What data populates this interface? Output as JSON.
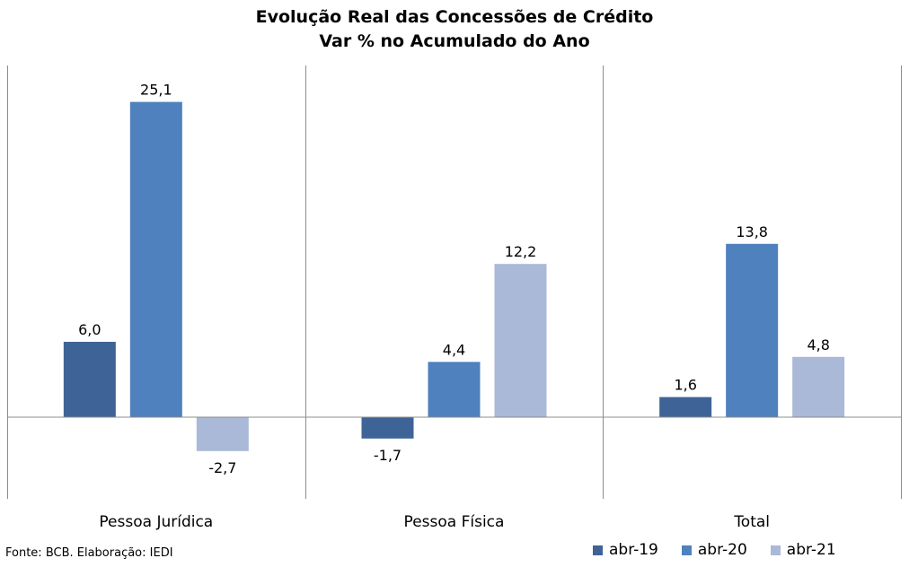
{
  "chart_data": {
    "type": "bar",
    "title": "Evolução Real das Concessões de Crédito",
    "subtitle": "Var % no Acumulado do Ano",
    "categories": [
      "Pessoa Jurídica",
      "Pessoa Física",
      "Total"
    ],
    "series": [
      {
        "name": "abr-19",
        "values": [
          6.0,
          -1.7,
          1.6
        ],
        "labels": [
          "6,0",
          "-1,7",
          "1,6"
        ],
        "color": "#3E6497"
      },
      {
        "name": "abr-20",
        "values": [
          25.1,
          4.4,
          13.8
        ],
        "labels": [
          "25,1",
          "4,4",
          "13,8"
        ],
        "color": "#4E81BD"
      },
      {
        "name": "abr-21",
        "values": [
          -2.7,
          12.2,
          4.8
        ],
        "labels": [
          "-2,7",
          "12,2",
          "4,8"
        ],
        "color": "#AAB9D8"
      }
    ],
    "ylim": [
      -6.5,
      28
    ],
    "grid": false,
    "legend": "bottom-right"
  },
  "source": "Fonte: BCB. Elaboração: IEDI"
}
